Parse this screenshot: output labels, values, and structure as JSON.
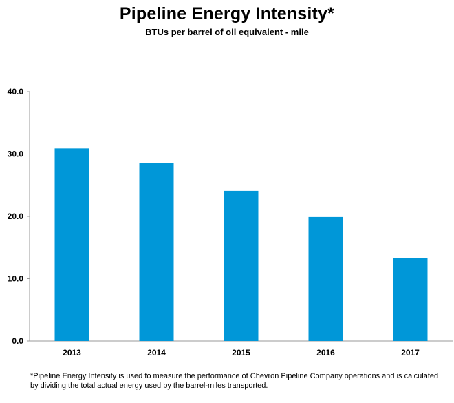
{
  "chart_data": {
    "type": "bar",
    "title": "Pipeline Energy Intensity*",
    "subtitle": "BTUs per barrel of oil equivalent - mile",
    "categories": [
      "2013",
      "2014",
      "2015",
      "2016",
      "2017"
    ],
    "values": [
      30.9,
      28.6,
      24.1,
      19.9,
      13.3
    ],
    "ylim": [
      0,
      40
    ],
    "yticks": [
      0,
      10,
      20,
      30,
      40
    ],
    "ytick_labels": [
      "0.0",
      "10.0",
      "20.0",
      "30.0",
      "40.0"
    ],
    "xlabel": "",
    "ylabel": "",
    "grid": false,
    "bar_color": "#0097d8",
    "footnote": "*Pipeline Energy Intensity is used to measure the performance of Chevron Pipeline Company operations and is calculated by dividing the total actual energy used by the barrel-miles transported."
  }
}
